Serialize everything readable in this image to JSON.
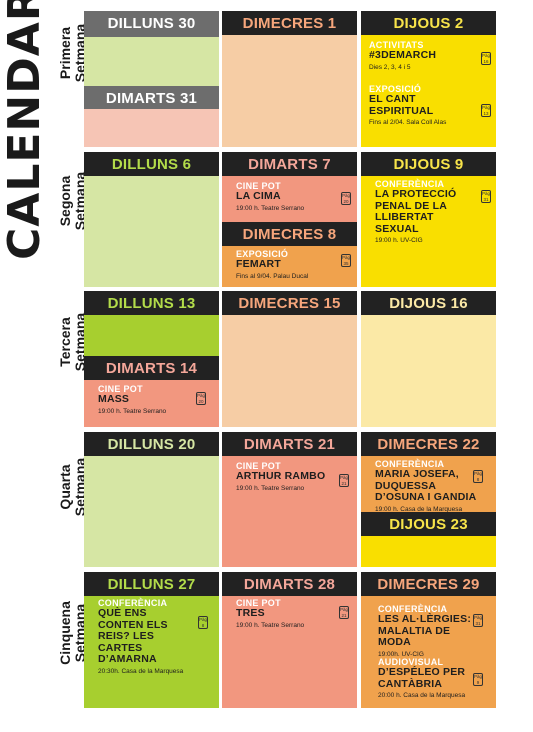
{
  "title": "CALENDARI",
  "weeks": [
    {
      "l1": "Primera",
      "l2": "Setmana"
    },
    {
      "l1": "Segona",
      "l2": "Setmana"
    },
    {
      "l1": "Tercera",
      "l2": "Setmana"
    },
    {
      "l1": "Quarta",
      "l2": "Setmana"
    },
    {
      "l1": "Cinquena",
      "l2": "Setmana"
    }
  ],
  "days": {
    "w1c1a": "DILLUNS 30",
    "w1c1b": "DIMARTS 31",
    "w1c2": "DIMECRES 1",
    "w1c3": "DIJOUS 2",
    "w2c1": "DILLUNS 6",
    "w2c2a": "DIMARTS 7",
    "w2c2b": "DIMECRES 8",
    "w2c3": "DIJOUS 9",
    "w3c1a": "DILLUNS 13",
    "w3c1b": "DIMARTS 14",
    "w3c2": "DIMECRES 15",
    "w3c3": "DIJOUS 16",
    "w4c1": "DILLUNS 20",
    "w4c2": "DIMARTS 21",
    "w4c3a": "DIMECRES 22",
    "w4c3b": "DIJOUS 23",
    "w5c1": "DILLUNS 27",
    "w5c2": "DIMARTS 28",
    "w5c3": "DIMECRES 29"
  },
  "events": {
    "e1": {
      "cat": "ACTIVITATS",
      "title": "#3DEMARCH",
      "info": "Dies 2, 3, 4 i 5",
      "badge": "Pàg. 16"
    },
    "e2": {
      "cat": "EXPOSICIÓ",
      "title": "EL CANT ESPIRITUAL",
      "info": "Fins al 2/04. Sala Coll Alas",
      "badge": "Pàg. 13"
    },
    "e3": {
      "cat": "CINE POT",
      "title": "LA CIMA",
      "info": "19:00 h. Teatre Serrano",
      "badge": "Pàg. 20"
    },
    "e4": {
      "cat": "EXPOSICIÓ",
      "title": "FEMART",
      "info": "Fins al 9/04. Palau Ducal",
      "badge": "Pàg. 35"
    },
    "e5": {
      "cat": "CONFERÈNCIA",
      "title": "LA PROTECCIÓ PENAL DE LA LLIBERTAT SEXUAL",
      "info": "19:00 h. UV-CIG",
      "badge": "Pàg. 31"
    },
    "e6": {
      "cat": "CINE POT",
      "title": "MASS",
      "info": "19:00 h. Teatre Serrano",
      "badge": "Pàg. 20"
    },
    "e7": {
      "cat": "CINE POT",
      "title": "ARTHUR RAMBO",
      "info": "19:00 h. Teatre Serrano",
      "badge": "Pàg. 21"
    },
    "e8": {
      "cat": "CONFERÈNCIA",
      "title": "MARIA JOSEFA, DUQUESSA D’OSUNA I GANDIA",
      "info": "19:00 h. Casa de la Marquesa",
      "badge": "Pàg. 8"
    },
    "e9": {
      "cat": "CONFERÈNCIA",
      "title": "QUÈ ENS CONTEN ELS REIS? LES CARTES D’AMARNA",
      "info": "20:30h. Casa de la Marquesa",
      "badge": "Pàg. 8"
    },
    "e10": {
      "cat": "CINE POT",
      "title": "TRES",
      "info": "19:00 h. Teatre Serrano",
      "badge": "Pàg. 21"
    },
    "e11": {
      "cat": "CONFERÈNCIA",
      "title": "LES AL·LÈRGIES: MALALTIA DE MODA",
      "info": "19:00h. UV-CIG",
      "badge": "Pàg. 31"
    },
    "e12": {
      "cat": "AUDIOVISUAL",
      "title": "D’ESPÉLEO PER CANTÀBRIA",
      "info": "20:00 h. Casa de la Marquesa",
      "badge": "Pàg. 9"
    }
  },
  "colors": {
    "green_light": "#d6e6a4",
    "green": "#a7cf2f",
    "salmon_light": "#f6c5b5",
    "salmon": "#f2977f",
    "peach": "#f6cda5",
    "orange": "#f0a24d",
    "yellow": "#f9df00",
    "cream": "#fbe9a6",
    "dark": "#222222"
  }
}
